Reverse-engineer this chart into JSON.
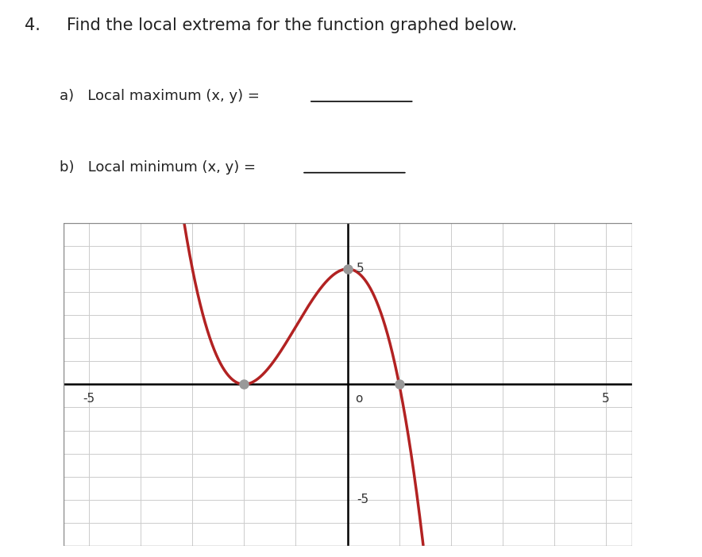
{
  "title_line1": "4.",
  "title_line2": "Find the local extrema for the function graphed below.",
  "label_a": "a)   Local maximum (x, y) =",
  "label_b": "b)   Local minimum (x, y) =",
  "xlim": [
    -5.5,
    5.5
  ],
  "ylim": [
    -7.0,
    7.0
  ],
  "grid_color": "#cccccc",
  "axis_color": "#000000",
  "curve_color": "#b22222",
  "dot_color": "#999999",
  "background": "#ffffff",
  "dot_points": [
    [
      -2,
      0
    ],
    [
      0,
      5
    ],
    [
      1,
      0
    ]
  ],
  "font_size_title": 15,
  "font_size_label": 13,
  "text_color": "#222222"
}
